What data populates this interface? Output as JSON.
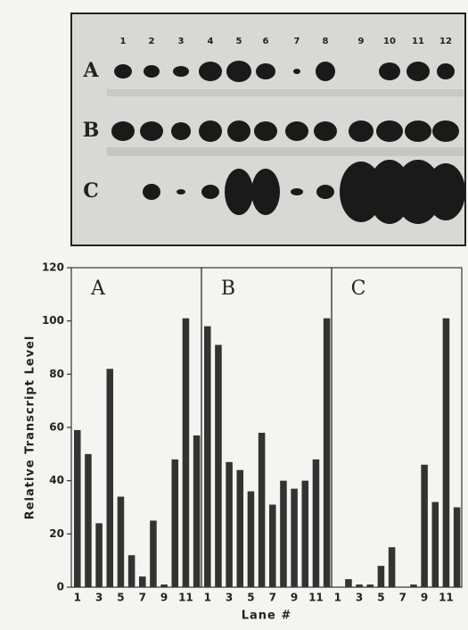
{
  "blot": {
    "lanes": [
      "1",
      "2",
      "3",
      "4",
      "5",
      "6",
      "7",
      "8",
      "9",
      "10",
      "11",
      "12"
    ],
    "rows": [
      "A",
      "B",
      "C"
    ]
  },
  "chart_data": [
    {
      "type": "bar",
      "panel_label": "A",
      "ylabel": "Relative Transcript Level",
      "color": "#333333",
      "categories": [
        "1",
        null,
        "3",
        null,
        "5",
        null,
        "7",
        null,
        "9",
        null,
        "11",
        null
      ],
      "values": [
        59,
        50,
        24,
        82,
        34,
        12,
        4,
        25,
        1,
        48,
        101,
        57
      ],
      "ylim": [
        0,
        120
      ],
      "yticks": [
        0,
        20,
        40,
        60,
        80,
        100,
        120
      ]
    },
    {
      "type": "bar",
      "panel_label": "B",
      "xlabel": "Lane #",
      "color": "#333333",
      "categories": [
        "1",
        null,
        "3",
        null,
        "5",
        null,
        "7",
        null,
        "9",
        null,
        "11",
        null
      ],
      "values": [
        98,
        91,
        47,
        44,
        36,
        58,
        31,
        40,
        37,
        40,
        48,
        101
      ],
      "ylim": [
        0,
        120
      ]
    },
    {
      "type": "bar",
      "panel_label": "C",
      "color": "#333333",
      "categories": [
        "1",
        null,
        "3",
        null,
        "5",
        null,
        "7",
        null,
        "9",
        null,
        "11",
        null
      ],
      "values": [
        0,
        3,
        1,
        1,
        8,
        15,
        0,
        1,
        46,
        32,
        101,
        30
      ],
      "ylim": [
        0,
        120
      ]
    }
  ]
}
